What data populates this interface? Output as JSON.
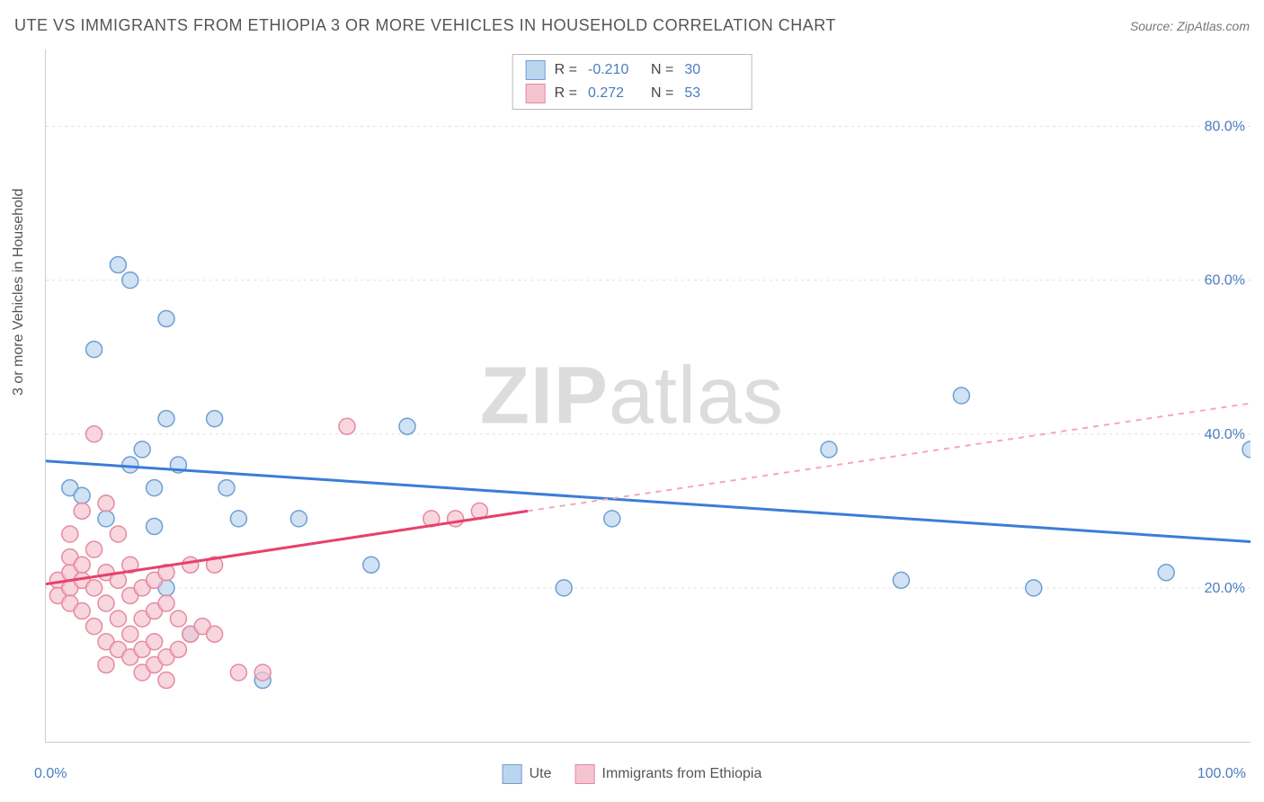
{
  "title": "UTE VS IMMIGRANTS FROM ETHIOPIA 3 OR MORE VEHICLES IN HOUSEHOLD CORRELATION CHART",
  "source": "Source: ZipAtlas.com",
  "watermark_bold": "ZIP",
  "watermark_light": "atlas",
  "axes": {
    "ylabel": "3 or more Vehicles in Household",
    "x_min_label": "0.0%",
    "x_max_label": "100.0%",
    "xlim": [
      0,
      100
    ],
    "ylim": [
      0,
      90
    ],
    "y_ticks": [
      20,
      40,
      60,
      80
    ],
    "y_tick_labels": [
      "20.0%",
      "40.0%",
      "60.0%",
      "80.0%"
    ],
    "x_minor_ticks": [
      0,
      10,
      20,
      30,
      40,
      50,
      60,
      70,
      80,
      90,
      100
    ],
    "grid_color": "#e0e0e0",
    "tick_label_color": "#4a7dbf",
    "tick_label_fontsize": 16
  },
  "series": [
    {
      "name": "Ute",
      "fill": "#bcd5ef",
      "stroke": "#6f9fd3",
      "line_color": "#3b7dd8",
      "line_dash_color": "#9fc1e8",
      "marker_radius": 9,
      "R": "-0.210",
      "N": "30",
      "points": [
        [
          2,
          33
        ],
        [
          3,
          32
        ],
        [
          4,
          51
        ],
        [
          5,
          29
        ],
        [
          6,
          62
        ],
        [
          7,
          60
        ],
        [
          7,
          36
        ],
        [
          8,
          38
        ],
        [
          9,
          33
        ],
        [
          9,
          28
        ],
        [
          10,
          55
        ],
        [
          10,
          42
        ],
        [
          10,
          20
        ],
        [
          11,
          36
        ],
        [
          12,
          14
        ],
        [
          14,
          42
        ],
        [
          15,
          33
        ],
        [
          16,
          29
        ],
        [
          18,
          8
        ],
        [
          21,
          29
        ],
        [
          27,
          23
        ],
        [
          30,
          41
        ],
        [
          43,
          20
        ],
        [
          47,
          29
        ],
        [
          65,
          38
        ],
        [
          71,
          21
        ],
        [
          76,
          45
        ],
        [
          82,
          20
        ],
        [
          93,
          22
        ],
        [
          100,
          38
        ]
      ],
      "trend_solid": [
        [
          0,
          36.5
        ],
        [
          100,
          26
        ]
      ],
      "trend_dash": null
    },
    {
      "name": "Immigrants from Ethiopia",
      "fill": "#f5c4d0",
      "stroke": "#e58aa3",
      "line_color": "#e6416c",
      "line_dash_color": "#f2a9b9",
      "marker_radius": 9,
      "R": "0.272",
      "N": "53",
      "points": [
        [
          1,
          21
        ],
        [
          1,
          19
        ],
        [
          2,
          22
        ],
        [
          2,
          20
        ],
        [
          2,
          18
        ],
        [
          2,
          24
        ],
        [
          2,
          27
        ],
        [
          3,
          21
        ],
        [
          3,
          17
        ],
        [
          3,
          30
        ],
        [
          3,
          23
        ],
        [
          4,
          20
        ],
        [
          4,
          15
        ],
        [
          4,
          25
        ],
        [
          4,
          40
        ],
        [
          5,
          22
        ],
        [
          5,
          18
        ],
        [
          5,
          10
        ],
        [
          5,
          13
        ],
        [
          5,
          31
        ],
        [
          6,
          21
        ],
        [
          6,
          16
        ],
        [
          6,
          12
        ],
        [
          6,
          27
        ],
        [
          7,
          19
        ],
        [
          7,
          23
        ],
        [
          7,
          14
        ],
        [
          7,
          11
        ],
        [
          8,
          20
        ],
        [
          8,
          16
        ],
        [
          8,
          12
        ],
        [
          8,
          9
        ],
        [
          9,
          21
        ],
        [
          9,
          17
        ],
        [
          9,
          13
        ],
        [
          9,
          10
        ],
        [
          10,
          22
        ],
        [
          10,
          18
        ],
        [
          10,
          11
        ],
        [
          10,
          8
        ],
        [
          11,
          16
        ],
        [
          11,
          12
        ],
        [
          12,
          14
        ],
        [
          12,
          23
        ],
        [
          13,
          15
        ],
        [
          14,
          14
        ],
        [
          14,
          23
        ],
        [
          16,
          9
        ],
        [
          18,
          9
        ],
        [
          25,
          41
        ],
        [
          32,
          29
        ],
        [
          34,
          29
        ],
        [
          36,
          30
        ]
      ],
      "trend_solid": [
        [
          0,
          20.5
        ],
        [
          40,
          30
        ]
      ],
      "trend_dash": [
        [
          40,
          30
        ],
        [
          100,
          44
        ]
      ]
    }
  ],
  "legend_bottom": [
    {
      "label": "Ute",
      "fill": "#bcd5ef",
      "stroke": "#6f9fd3"
    },
    {
      "label": "Immigrants from Ethiopia",
      "fill": "#f5c4d0",
      "stroke": "#e58aa3"
    }
  ],
  "colors": {
    "background": "#ffffff",
    "axis": "#cccccc",
    "title": "#555555"
  }
}
